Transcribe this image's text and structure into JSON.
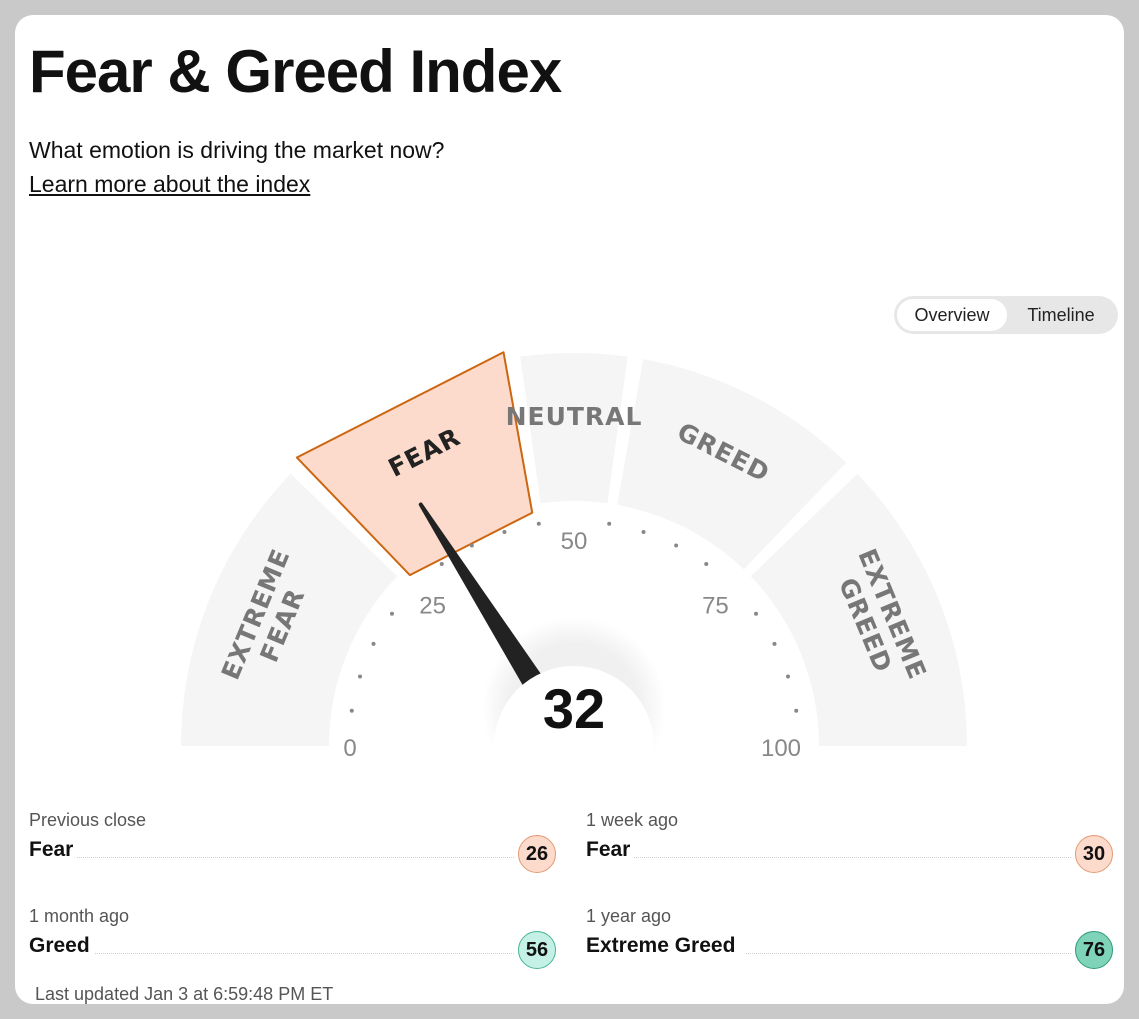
{
  "header": {
    "title": "Fear & Greed Index",
    "subtitle": "What emotion is driving the market now?",
    "learn_more": "Learn more about the index"
  },
  "view_toggle": {
    "options": [
      "Overview",
      "Timeline"
    ],
    "selected": "Overview"
  },
  "gauge": {
    "score": 32,
    "active_zone": "FEAR",
    "zones": [
      {
        "lines": [
          "EXTREME",
          "FEAR"
        ],
        "from": 0,
        "to": 25
      },
      {
        "lines": [
          "FEAR"
        ],
        "from": 25,
        "to": 45
      },
      {
        "lines": [
          "NEUTRAL"
        ],
        "from": 45,
        "to": 55
      },
      {
        "lines": [
          "GREED"
        ],
        "from": 55,
        "to": 75
      },
      {
        "lines": [
          "EXTREME",
          "GREED"
        ],
        "from": 75,
        "to": 100
      }
    ],
    "scale_labels": [
      "0",
      "25",
      "50",
      "75",
      "100"
    ],
    "colors": {
      "zone_bg": "#f5f5f5",
      "active_fill": "#fcdbcc",
      "active_stroke": "#cc6611",
      "needle": "#222222"
    }
  },
  "history": [
    {
      "label": "Previous close",
      "rating": "Fear",
      "score": "26",
      "badge_bg": "#fcdbcc",
      "badge_border": "#e49a74"
    },
    {
      "label": "1 week ago",
      "rating": "Fear",
      "score": "30",
      "badge_bg": "#fcdbcc",
      "badge_border": "#e49a74"
    },
    {
      "label": "1 month ago",
      "rating": "Greed",
      "score": "56",
      "badge_bg": "#c4f0e6",
      "badge_border": "#49b596"
    },
    {
      "label": "1 year ago",
      "rating": "Extreme Greed",
      "score": "76",
      "badge_bg": "#7fd3b8",
      "badge_border": "#2f9a78"
    }
  ],
  "footer": {
    "last_updated": "Last updated Jan 3 at 6:59:48 PM ET"
  }
}
